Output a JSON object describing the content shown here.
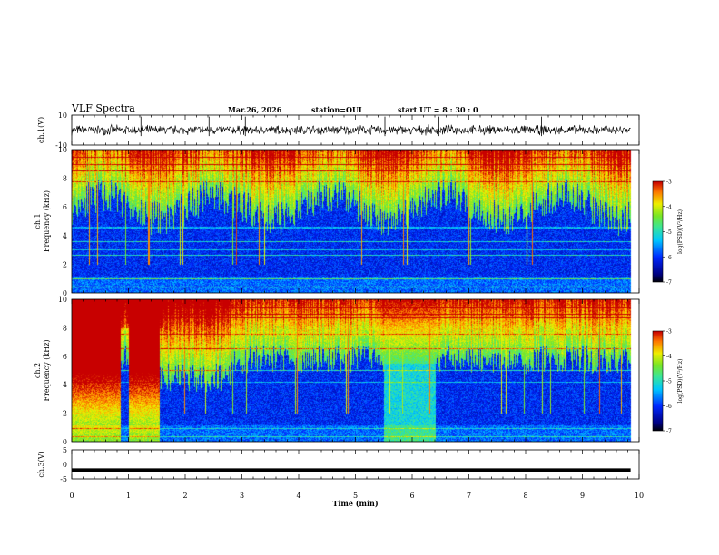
{
  "header": {
    "title": "VLF Spectra",
    "date": "Mar.26, 2026",
    "station": "station=OUI",
    "start_time": "start  UT =   8  : 30 : 0"
  },
  "chart_data": [
    {
      "type": "line",
      "panel": "ch1-waveform",
      "ylabel": "ch.1(V)",
      "ylim": [
        -10,
        10
      ],
      "yticks": [
        "10",
        "-10"
      ],
      "baseline": 0,
      "noise_amplitude": 2.5,
      "spike_times_min": [
        1.22,
        2.42,
        3.06,
        5.52,
        6.47,
        8.28
      ]
    },
    {
      "type": "heatmap",
      "panel": "ch1-spectrogram",
      "ylabel": "ch.1\nFrequency (kHz)",
      "ylim": [
        0,
        10
      ],
      "yticks": [
        "0",
        "2",
        "4",
        "6",
        "8",
        "10"
      ],
      "xlim": [
        0,
        9.85
      ],
      "background_cutoff_khz": 6,
      "colorbar": {
        "label": "log(PSD)(V²/Hz)",
        "range": [
          -7,
          -3
        ],
        "ticks": [
          "-3",
          "-4",
          "-5",
          "-6",
          "-7"
        ]
      }
    },
    {
      "type": "heatmap",
      "panel": "ch2-spectrogram",
      "ylabel": "ch.2\nFrequency (kHz)",
      "ylim": [
        0,
        10
      ],
      "yticks": [
        "0",
        "2",
        "4",
        "6",
        "8",
        "10"
      ],
      "xlim": [
        0,
        9.85
      ],
      "bright_segments_min": [
        [
          0,
          0.85
        ],
        [
          1.0,
          1.55
        ]
      ],
      "mid_segment_min": [
        5.5,
        6.4
      ],
      "colorbar": {
        "label": "log(PSD)(V²/Hz)",
        "range": [
          -7,
          -3
        ],
        "ticks": [
          "-3",
          "-4",
          "-5",
          "-6",
          "-7"
        ]
      }
    },
    {
      "type": "line",
      "panel": "ch3-waveform",
      "ylabel": "ch.3(V)",
      "ylim": [
        -5,
        5
      ],
      "yticks": [
        "5",
        "0",
        "-5"
      ],
      "constant_value": -2
    }
  ],
  "xaxis": {
    "label": "Time (min)",
    "range": [
      0,
      10
    ],
    "ticks": [
      "0",
      "1",
      "2",
      "3",
      "4",
      "5",
      "6",
      "7",
      "8",
      "9",
      "10"
    ]
  }
}
